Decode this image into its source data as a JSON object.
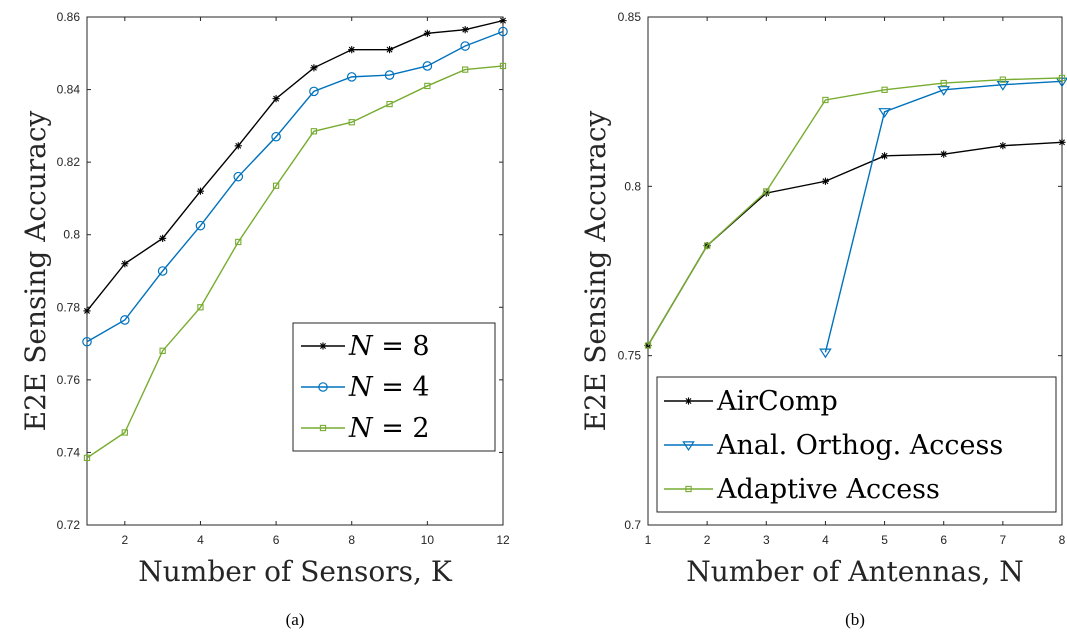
{
  "chart_data": [
    {
      "type": "line",
      "caption": "(a)",
      "xlabel": "Number of Sensors, K",
      "ylabel": "E2E Sensing Accuracy",
      "xlim": [
        1,
        12
      ],
      "ylim": [
        0.72,
        0.86
      ],
      "xticks": [
        2,
        4,
        6,
        8,
        10,
        12
      ],
      "yticks": [
        0.72,
        0.74,
        0.76,
        0.78,
        0.8,
        0.82,
        0.84,
        0.86
      ],
      "ytick_labels": [
        "0.72",
        "0.74",
        "0.76",
        "0.78",
        "0.8",
        "0.82",
        "0.84",
        "0.86"
      ],
      "x": [
        1,
        2,
        3,
        4,
        5,
        6,
        7,
        8,
        9,
        10,
        11,
        12
      ],
      "grid": false,
      "legend_position": "bottom-right",
      "series": [
        {
          "name": "N = 8",
          "color": "#000000",
          "marker": "asterisk",
          "values": [
            0.779,
            0.792,
            0.799,
            0.812,
            0.8245,
            0.8375,
            0.846,
            0.851,
            0.851,
            0.8555,
            0.8565,
            0.859
          ]
        },
        {
          "name": "N = 4",
          "color": "#0072BD",
          "marker": "circle",
          "values": [
            0.7705,
            0.7765,
            0.79,
            0.8025,
            0.816,
            0.827,
            0.8395,
            0.8435,
            0.844,
            0.8465,
            0.852,
            0.856
          ]
        },
        {
          "name": "N = 2",
          "color": "#77AC30",
          "marker": "square",
          "values": [
            0.7385,
            0.7455,
            0.768,
            0.78,
            0.798,
            0.8135,
            0.8285,
            0.831,
            0.836,
            0.841,
            0.8455,
            0.8465
          ]
        }
      ]
    },
    {
      "type": "line",
      "caption": "(b)",
      "xlabel": "Number of Antennas, N",
      "ylabel": "E2E Sensing Accuracy",
      "xlim": [
        1,
        8
      ],
      "ylim": [
        0.7,
        0.85
      ],
      "xticks": [
        1,
        2,
        3,
        4,
        5,
        6,
        7,
        8
      ],
      "yticks": [
        0.7,
        0.75,
        0.8,
        0.85
      ],
      "ytick_labels": [
        "0.7",
        "0.75",
        "0.8",
        "0.85"
      ],
      "grid": false,
      "legend_position": "bottom-left",
      "series": [
        {
          "name": "AirComp",
          "color": "#000000",
          "marker": "asterisk",
          "x": [
            1,
            2,
            3,
            4,
            5,
            6,
            7,
            8
          ],
          "values": [
            0.753,
            0.7825,
            0.798,
            0.8015,
            0.809,
            0.8095,
            0.812,
            0.813
          ]
        },
        {
          "name": "Anal. Orthog. Access",
          "color": "#0072BD",
          "marker": "triangle-down",
          "x": [
            4,
            5,
            6,
            7,
            8
          ],
          "values": [
            0.751,
            0.822,
            0.8285,
            0.83,
            0.831
          ]
        },
        {
          "name": "Adaptive Access",
          "color": "#77AC30",
          "marker": "square",
          "x": [
            1,
            2,
            3,
            4,
            5,
            6,
            7,
            8
          ],
          "values": [
            0.753,
            0.7825,
            0.7985,
            0.8255,
            0.8285,
            0.8305,
            0.8315,
            0.832
          ]
        }
      ]
    }
  ]
}
